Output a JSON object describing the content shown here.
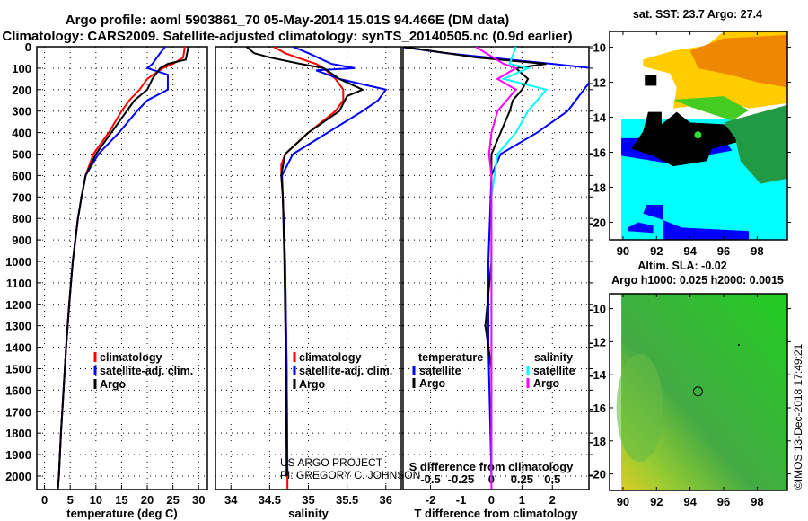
{
  "title": {
    "line1": "Argo profile: aoml 5903861_70 05-May-2014 15.01S 94.466E (DM data)",
    "line2": "Climatology: CARS2009. Satellite-adjusted climatology: synTS_20140505.nc (0.9d earlier)"
  },
  "credit": {
    "line1": "US ARGO PROJECT",
    "line2": "PI: GREGORY C. JOHNSON"
  },
  "watermark": "©IMOS 13-Dec-2018 17:49:21",
  "colors": {
    "climatology": "#ff0000",
    "satellite": "#0000ff",
    "argo": "#000000",
    "sal_satellite": "#00ffff",
    "sal_argo": "#ff00ff"
  },
  "chart_data": [
    {
      "type": "line",
      "title": "",
      "xlabel": "temperature (deg C)",
      "ylabel": "",
      "xlim": [
        -1.5,
        31.7
      ],
      "ylim": [
        2063,
        0
      ],
      "xticks": [
        "0",
        "5",
        "10",
        "15",
        "20",
        "25",
        "30"
      ],
      "yticks": [
        "0",
        "100",
        "200",
        "300",
        "400",
        "500",
        "600",
        "700",
        "800",
        "900",
        "1000",
        "1100",
        "1200",
        "1300",
        "1400",
        "1500",
        "1600",
        "1700",
        "1800",
        "1900",
        "2000"
      ],
      "legend": [
        "climatology",
        "satellite-adj. clim.",
        "Argo"
      ],
      "legend_placement": "bottom-right",
      "series": [
        {
          "name": "climatology",
          "color": "#ff0000",
          "points": [
            [
              0,
              27.3
            ],
            [
              50,
              27
            ],
            [
              80,
              25
            ],
            [
              100,
              23
            ],
            [
              150,
              20
            ],
            [
              200,
              18.5
            ],
            [
              250,
              16.5
            ],
            [
              300,
              15
            ],
            [
              400,
              12.5
            ],
            [
              500,
              9.5
            ],
            [
              600,
              8
            ],
            [
              700,
              7.2
            ],
            [
              800,
              6.5
            ],
            [
              900,
              6
            ],
            [
              1000,
              5.5
            ],
            [
              1200,
              4.8
            ],
            [
              1400,
              4.2
            ],
            [
              1600,
              3.7
            ],
            [
              1800,
              3.2
            ],
            [
              2000,
              2.8
            ],
            [
              2060,
              2.6
            ]
          ]
        },
        {
          "name": "satellite-adj. clim.",
          "color": "#0000ff",
          "points": [
            [
              0,
              23.5
            ],
            [
              30,
              22.5
            ],
            [
              80,
              21
            ],
            [
              100,
              20
            ],
            [
              130,
              24
            ],
            [
              200,
              24
            ],
            [
              250,
              20
            ],
            [
              300,
              18
            ],
            [
              400,
              14.5
            ],
            [
              500,
              10.5
            ],
            [
              600,
              8
            ],
            [
              700,
              7.2
            ],
            [
              800,
              6.5
            ],
            [
              900,
              6
            ],
            [
              1000,
              5.5
            ],
            [
              1200,
              4.8
            ],
            [
              1400,
              4.2
            ],
            [
              1600,
              3.7
            ],
            [
              1800,
              3.2
            ],
            [
              2000,
              2.8
            ],
            [
              2060,
              2.6
            ]
          ]
        },
        {
          "name": "Argo",
          "color": "#000000",
          "points": [
            [
              0,
              28
            ],
            [
              60,
              27.5
            ],
            [
              80,
              24
            ],
            [
              100,
              22.5
            ],
            [
              150,
              21
            ],
            [
              200,
              20
            ],
            [
              250,
              17.5
            ],
            [
              300,
              16
            ],
            [
              400,
              13
            ],
            [
              500,
              10
            ],
            [
              600,
              8
            ],
            [
              700,
              7.2
            ],
            [
              800,
              6.5
            ],
            [
              900,
              6
            ],
            [
              1000,
              5.5
            ],
            [
              1200,
              4.8
            ],
            [
              1400,
              4.2
            ],
            [
              1600,
              3.7
            ],
            [
              1800,
              3.2
            ],
            [
              2000,
              2.8
            ],
            [
              2060,
              2.6
            ]
          ]
        }
      ]
    },
    {
      "type": "line",
      "title": "",
      "xlabel": "salinity",
      "ylabel": "",
      "xlim": [
        33.8,
        36.2
      ],
      "ylim": [
        2063,
        0
      ],
      "xticks": [
        "34",
        "34.5",
        "35",
        "35.5",
        "36"
      ],
      "legend": [
        "climatology",
        "satellite-adj. clim.",
        "Argo"
      ],
      "legend_placement": "bottom-right",
      "series": [
        {
          "name": "climatology",
          "color": "#ff0000",
          "points": [
            [
              0,
              34.55
            ],
            [
              30,
              34.7
            ],
            [
              50,
              34.85
            ],
            [
              80,
              35.1
            ],
            [
              100,
              35.2
            ],
            [
              150,
              35.35
            ],
            [
              200,
              35.45
            ],
            [
              250,
              35.45
            ],
            [
              300,
              35.35
            ],
            [
              400,
              35.0
            ],
            [
              500,
              34.7
            ],
            [
              550,
              34.65
            ],
            [
              600,
              34.65
            ],
            [
              700,
              34.67
            ],
            [
              1000,
              34.7
            ],
            [
              1500,
              34.72
            ],
            [
              2060,
              34.73
            ]
          ]
        },
        {
          "name": "satellite-adj. clim.",
          "color": "#0000ff",
          "points": [
            [
              0,
              34.8
            ],
            [
              30,
              35.0
            ],
            [
              80,
              35.3
            ],
            [
              100,
              35.6
            ],
            [
              110,
              35.1
            ],
            [
              150,
              35.4
            ],
            [
              200,
              36.0
            ],
            [
              250,
              35.9
            ],
            [
              300,
              35.7
            ],
            [
              400,
              35.25
            ],
            [
              500,
              34.8
            ],
            [
              600,
              34.66
            ],
            [
              700,
              34.67
            ],
            [
              1000,
              34.7
            ],
            [
              1500,
              34.72
            ],
            [
              2000,
              34.73
            ]
          ]
        },
        {
          "name": "Argo",
          "color": "#000000",
          "points": [
            [
              0,
              34.2
            ],
            [
              30,
              34.3
            ],
            [
              50,
              34.5
            ],
            [
              80,
              34.9
            ],
            [
              100,
              35.2
            ],
            [
              150,
              35.4
            ],
            [
              200,
              35.7
            ],
            [
              230,
              35.5
            ],
            [
              300,
              35.4
            ],
            [
              400,
              35.0
            ],
            [
              500,
              34.7
            ],
            [
              600,
              34.65
            ],
            [
              700,
              34.67
            ],
            [
              1000,
              34.69
            ],
            [
              1500,
              34.71
            ],
            [
              2000,
              34.72
            ]
          ]
        }
      ]
    },
    {
      "type": "line",
      "title": "",
      "xlabel": "T difference from climatology",
      "xlabel2": "S difference from climatology",
      "xlim": [
        -2.9,
        3.2
      ],
      "x2lim": [
        -0.725,
        0.8
      ],
      "ylim": [
        2063,
        0
      ],
      "xticks": [
        "-2",
        "-1",
        "0",
        "1",
        "2"
      ],
      "x2ticks": [
        "-0.5",
        "-0.25",
        "0",
        "0.25",
        "0.5"
      ],
      "legend_temperature": {
        "heading": "temperature",
        "items": [
          "satellite",
          "Argo"
        ]
      },
      "legend_salinity": {
        "heading": "salinity",
        "items": [
          "satellite",
          "Argo"
        ]
      },
      "series": [
        {
          "name": "T satellite",
          "color": "#0000ff",
          "axis": "T",
          "points": [
            [
              0,
              -3
            ],
            [
              30,
              -1.5
            ],
            [
              80,
              2
            ],
            [
              100,
              3.3
            ],
            [
              150,
              3.3
            ],
            [
              300,
              2.5
            ],
            [
              400,
              1.5
            ],
            [
              500,
              0.3
            ],
            [
              600,
              0
            ],
            [
              1000,
              -0.1
            ],
            [
              1400,
              -0.1
            ],
            [
              2000,
              0
            ]
          ]
        },
        {
          "name": "T Argo",
          "color": "#000000",
          "axis": "T",
          "points": [
            [
              0,
              -2.9
            ],
            [
              50,
              -0.5
            ],
            [
              80,
              1.8
            ],
            [
              100,
              0.8
            ],
            [
              150,
              1.2
            ],
            [
              200,
              1.0
            ],
            [
              250,
              0.7
            ],
            [
              300,
              0.6
            ],
            [
              400,
              0.3
            ],
            [
              500,
              0
            ],
            [
              600,
              0
            ],
            [
              1000,
              0
            ],
            [
              1300,
              -0.2
            ],
            [
              1500,
              0
            ],
            [
              2000,
              0
            ]
          ]
        },
        {
          "name": "S satellite",
          "color": "#00ffff",
          "axis": "S",
          "points": [
            [
              0,
              0.2
            ],
            [
              80,
              0.15
            ],
            [
              100,
              0.3
            ],
            [
              150,
              0.1
            ],
            [
              200,
              0.45
            ],
            [
              300,
              0.3
            ],
            [
              400,
              0.2
            ],
            [
              500,
              0.05
            ],
            [
              700,
              0
            ],
            [
              1000,
              0
            ],
            [
              2060,
              0
            ]
          ]
        },
        {
          "name": "S Argo",
          "color": "#ff00ff",
          "axis": "S",
          "points": [
            [
              0,
              -0.13
            ],
            [
              80,
              0.1
            ],
            [
              100,
              0.2
            ],
            [
              150,
              0.05
            ],
            [
              200,
              0.2
            ],
            [
              300,
              0.05
            ],
            [
              400,
              0
            ],
            [
              500,
              -0.02
            ],
            [
              600,
              0
            ],
            [
              2060,
              0
            ]
          ]
        }
      ]
    },
    {
      "type": "heatmap",
      "title": "sat. SST: 23.7 Argo: 27.4",
      "xlim": [
        89.2,
        99.8
      ],
      "ylim": [
        -21,
        -9.1
      ],
      "xticks": [
        "90",
        "92",
        "94",
        "96",
        "98"
      ],
      "yticks": [
        "-10",
        "-12",
        "-14",
        "-16",
        "-18",
        "-20"
      ],
      "marker": {
        "lon": 94.47,
        "lat": -15.01
      }
    },
    {
      "type": "heatmap",
      "title": "Altim. SLA: -0.02",
      "subtitle": "Argo h1000: 0.025 h2000: 0.0015",
      "xlim": [
        89.2,
        99.8
      ],
      "ylim": [
        -21,
        -9.1
      ],
      "xticks": [
        "90",
        "92",
        "94",
        "96",
        "98"
      ],
      "yticks": [
        "-10",
        "-12",
        "-14",
        "-16",
        "-18",
        "-20"
      ],
      "marker": {
        "lon": 94.47,
        "lat": -15.01
      }
    }
  ]
}
